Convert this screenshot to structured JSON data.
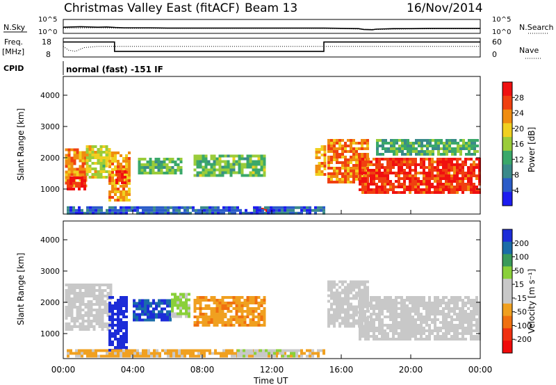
{
  "header": {
    "station": "Christmas Valley East (fitACF)",
    "beam": "Beam 13",
    "date": "16/Nov/2014"
  },
  "colors": {
    "power_scale": [
      "#1c1cf0",
      "#2a5cc8",
      "#3a8a8a",
      "#3aa86a",
      "#9acc3a",
      "#f0d020",
      "#f08c10",
      "#f04010",
      "#f01010"
    ],
    "velocity_scale": [
      "#1c2cd8",
      "#1a6ca8",
      "#3a9a5a",
      "#8ad03a",
      "#c8c8c8",
      "#c8c8c8",
      "#f0a020",
      "#f07010",
      "#f03010",
      "#f00a0a"
    ]
  },
  "chart_data": [
    {
      "type": "line",
      "panel": "noise",
      "ylabel_left": "N.Sky",
      "ylabel_right": "N.Search",
      "ytick_left": [
        "10^5",
        "10^0"
      ],
      "ytick_right": [
        "10^5",
        "10^0"
      ],
      "series": [
        {
          "name": "N.Sky",
          "style": "solid",
          "x": [
            0,
            0.5,
            1,
            1.5,
            2,
            2.5,
            3,
            3.5,
            4,
            5,
            6,
            7,
            8,
            9,
            10,
            11,
            12,
            13,
            14,
            15,
            16,
            17,
            17.3,
            17.8,
            18,
            19,
            20,
            21,
            22,
            23,
            24
          ],
          "y": [
            2.2,
            2.3,
            2.4,
            2.3,
            2.2,
            2.3,
            2.1,
            2.0,
            2.0,
            2.0,
            1.9,
            1.9,
            1.9,
            1.9,
            1.9,
            1.9,
            1.9,
            1.9,
            1.9,
            1.9,
            1.8,
            1.7,
            1.4,
            1.3,
            1.5,
            1.7,
            1.7,
            1.8,
            1.8,
            1.8,
            1.8
          ]
        },
        {
          "name": "N.Search",
          "style": "dotted",
          "x": [
            0,
            2,
            4,
            6,
            8,
            10,
            12,
            14,
            16,
            18,
            20,
            22,
            24
          ],
          "y": [
            1.9,
            2.0,
            1.8,
            1.8,
            1.8,
            1.8,
            1.8,
            1.8,
            1.7,
            1.4,
            1.6,
            1.7,
            1.7
          ]
        }
      ],
      "xlim": [
        0,
        24
      ]
    },
    {
      "type": "line",
      "panel": "frequency",
      "ylabel_left": "Freq. [MHz]",
      "ylabel_right": "Nave",
      "ytick_left": [
        "18",
        "8"
      ],
      "ytick_right": [
        "60",
        "0"
      ],
      "series": [
        {
          "name": "Freq.",
          "style": "solid",
          "x": [
            0,
            2.95,
            2.95,
            15,
            15,
            24
          ],
          "y": [
            16,
            16,
            11,
            11,
            16,
            16
          ]
        },
        {
          "name": "Nave",
          "style": "dotted",
          "x": [
            0,
            0.3,
            0.7,
            1.2,
            2,
            3,
            6,
            9,
            12,
            15,
            18,
            21,
            24
          ],
          "y": [
            34,
            22,
            18,
            30,
            34,
            34,
            34,
            34,
            34,
            34,
            34,
            34,
            34
          ]
        }
      ],
      "xlim": [
        0,
        24
      ]
    },
    {
      "type": "text",
      "panel": "cpid",
      "label": "CPID",
      "value": "normal (fast) -151 IF"
    },
    {
      "type": "heatmap",
      "panel": "power",
      "ylabel": "Slant Range [km]",
      "yticks": [
        "1000",
        "2000",
        "3000",
        "4000"
      ],
      "ylim": [
        200,
        4600
      ],
      "xlim": [
        0,
        24
      ],
      "colorbar": {
        "label": "Power [dB]",
        "ticks": [
          "4",
          "8",
          "12",
          "16",
          "20",
          "24",
          "28"
        ],
        "range": [
          0,
          32
        ]
      },
      "regions": [
        {
          "x0": 0.1,
          "x1": 1.3,
          "y0": 1100,
          "y1": 2300,
          "value": 24
        },
        {
          "x0": 0.2,
          "x1": 1.2,
          "y0": 1000,
          "y1": 1400,
          "value": 30
        },
        {
          "x0": 1.3,
          "x1": 2.6,
          "y0": 1400,
          "y1": 2400,
          "value": 18
        },
        {
          "x0": 2.6,
          "x1": 3.8,
          "y0": 600,
          "y1": 2200,
          "value": 22
        },
        {
          "x0": 3.0,
          "x1": 3.6,
          "y0": 1200,
          "y1": 1600,
          "value": 30
        },
        {
          "x0": 4.3,
          "x1": 6.8,
          "y0": 1500,
          "y1": 2000,
          "value": 14
        },
        {
          "x0": 7.5,
          "x1": 11.6,
          "y0": 1400,
          "y1": 2100,
          "value": 14
        },
        {
          "x0": 11.0,
          "x1": 12.0,
          "y0": 300,
          "y1": 400,
          "value": 30
        },
        {
          "x0": 14.5,
          "x1": 15.0,
          "y0": 1500,
          "y1": 2400,
          "value": 22
        },
        {
          "x0": 15.2,
          "x1": 17.5,
          "y0": 1200,
          "y1": 2600,
          "value": 24
        },
        {
          "x0": 17.0,
          "x1": 23.9,
          "y0": 900,
          "y1": 2000,
          "value": 28
        },
        {
          "x0": 18.0,
          "x1": 23.9,
          "y0": 2100,
          "y1": 2600,
          "value": 12
        },
        {
          "x0": 0.2,
          "x1": 15.0,
          "y0": 250,
          "y1": 450,
          "value": 6
        }
      ]
    },
    {
      "type": "heatmap",
      "panel": "velocity",
      "ylabel": "Slant Range [km]",
      "yticks": [
        "1000",
        "2000",
        "3000",
        "4000"
      ],
      "ylim": [
        200,
        4600
      ],
      "xlim": [
        0,
        24
      ],
      "xlabel": "Time UT",
      "xticks": [
        "00:00",
        "04:00",
        "08:00",
        "12:00",
        "16:00",
        "20:00",
        "00:00"
      ],
      "colorbar": {
        "label": "Velocity [m s⁻¹]",
        "ticks": [
          "200",
          "100",
          "50",
          "15",
          "-15",
          "-50",
          "-100",
          "-200"
        ],
        "range": [
          -250,
          250
        ]
      },
      "regions": [
        {
          "x0": 0.1,
          "x1": 2.8,
          "y0": 1100,
          "y1": 2600,
          "value": 0
        },
        {
          "x0": 2.6,
          "x1": 3.6,
          "y0": 500,
          "y1": 2200,
          "value": 220
        },
        {
          "x0": 4.0,
          "x1": 6.2,
          "y0": 1400,
          "y1": 2100,
          "value": 200
        },
        {
          "x0": 6.2,
          "x1": 7.2,
          "y0": 1500,
          "y1": 2300,
          "value": 60
        },
        {
          "x0": 7.5,
          "x1": 11.6,
          "y0": 1300,
          "y1": 2200,
          "value": -90
        },
        {
          "x0": 15.2,
          "x1": 17.5,
          "y0": 1200,
          "y1": 2700,
          "value": 0
        },
        {
          "x0": 17.0,
          "x1": 23.9,
          "y0": 800,
          "y1": 2200,
          "value": 0
        },
        {
          "x0": 0.2,
          "x1": 15.0,
          "y0": 250,
          "y1": 500,
          "value": -60
        },
        {
          "x0": 10.0,
          "x1": 13.5,
          "y0": 300,
          "y1": 500,
          "value": 40
        }
      ]
    }
  ]
}
